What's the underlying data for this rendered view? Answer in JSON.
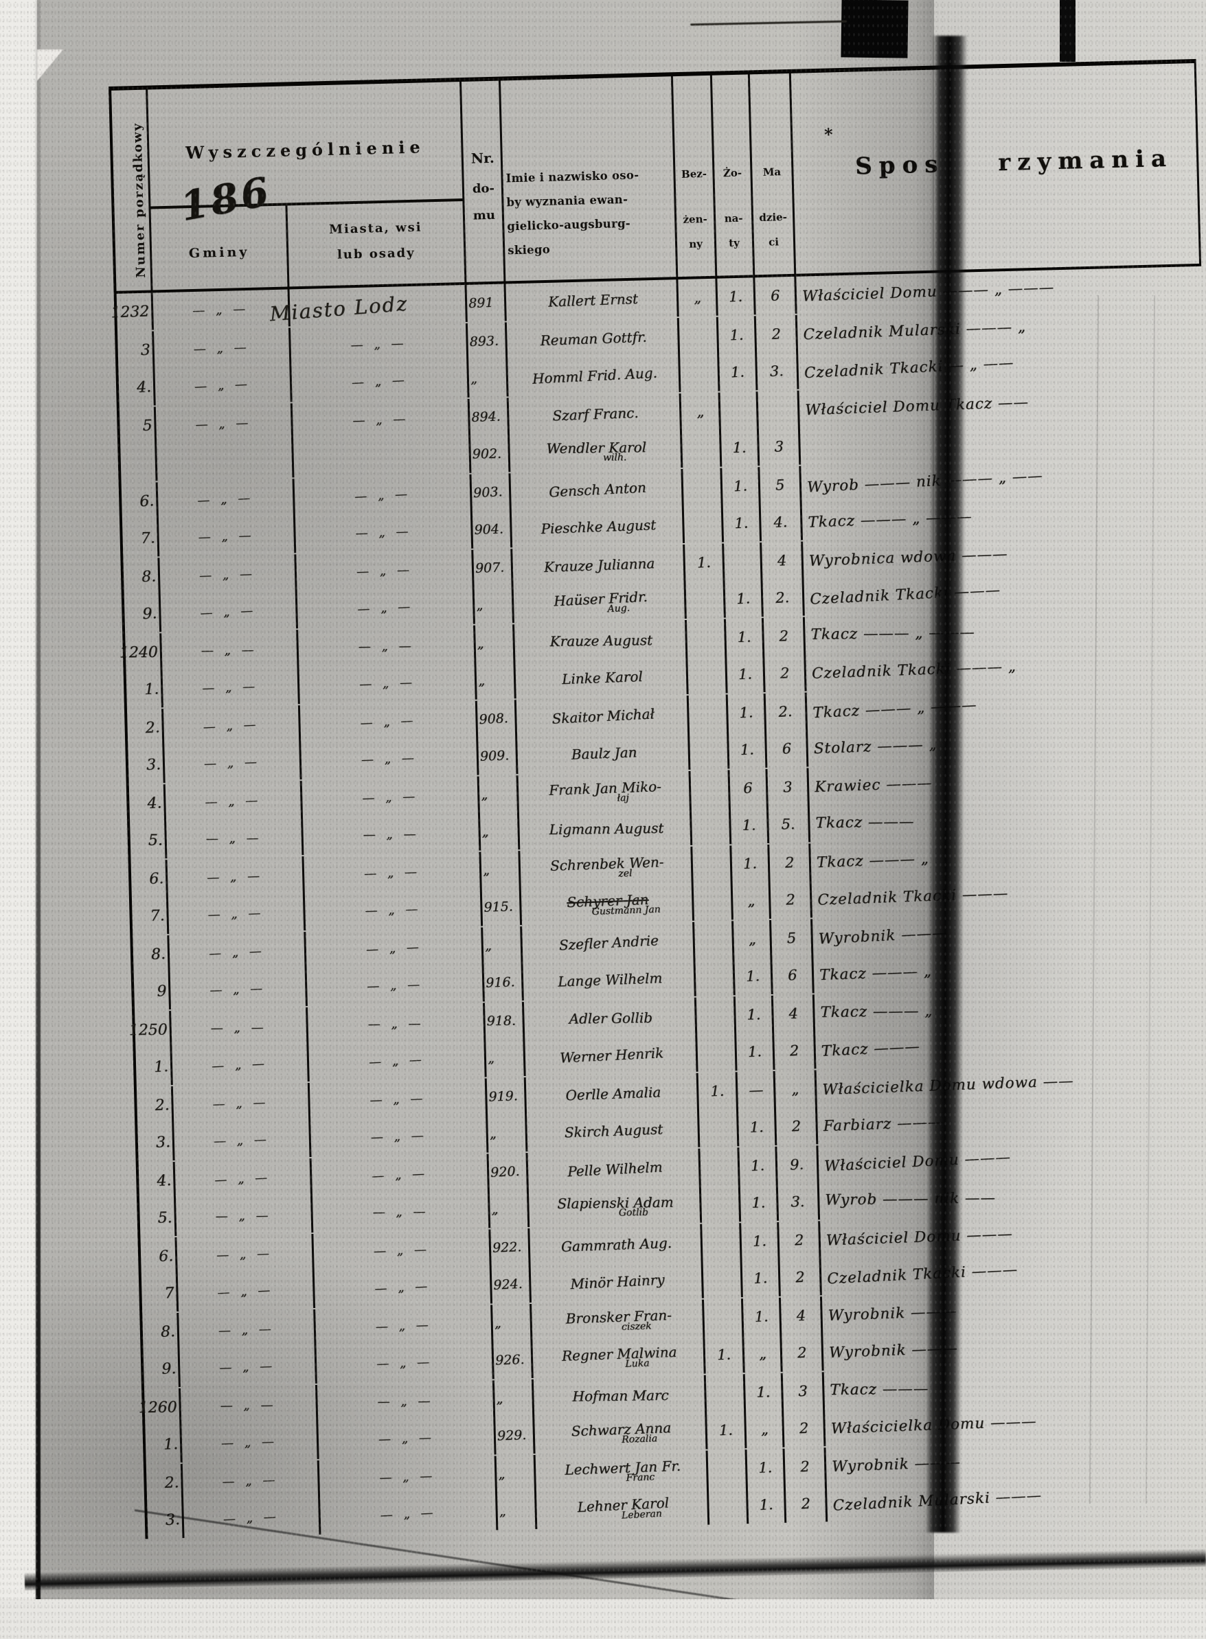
{
  "document": {
    "sheet_number": "186",
    "header": {
      "numer_col": "Numer porządkowy",
      "wyszczegolnienie": "Wyszczególnienie",
      "gminy": "Gminy",
      "miasta_line1": "Miasta, wsi",
      "miasta_line2": "lub osady",
      "nr_line1": "Nr.",
      "nr_line2": "do-",
      "nr_line3": "mu",
      "name_line1": "Imie i nazwisko oso-",
      "name_line2": "by wyznania ewan-",
      "name_line3": "gielicko-augsburg-",
      "name_line4": "skiego",
      "bez_line1": "Bez-",
      "bez_line2": "żen-",
      "bez_line3": "ny",
      "zo_line1": "Żo-",
      "zo_line2": "na-",
      "zo_line3": "ty",
      "ma_line1": "Ma",
      "ma_line2": "dzie-",
      "ma_line3": "ci",
      "sposob_left": "Spos",
      "sposob_right": "rzymania",
      "asterisk": "*"
    },
    "rows": [
      {
        "num": "1232",
        "g": "— „ —",
        "m": "Miasto Lodz",
        "nr": "891",
        "n": "Kallert Ernst",
        "b": "„",
        "z": "1.",
        "ma": "6",
        "o": "Właściciel Domu ——— „ ———"
      },
      {
        "num": "3",
        "g": "— „ —",
        "m": "— „ —",
        "nr": "893.",
        "n": "Reuman Gottfr.",
        "b": "",
        "z": "1.",
        "ma": "2",
        "o": "Czeladnik Mularski ——— „"
      },
      {
        "num": "4.",
        "g": "— „ —",
        "m": "— „ —",
        "nr": "„",
        "n": "Homml Frid. Aug.",
        "b": "",
        "z": "1.",
        "ma": "3.",
        "o": "Czeladnik Tkacki — „ ——"
      },
      {
        "num": "5",
        "g": "— „ —",
        "m": "— „ —",
        "nr": "894.",
        "n": "Szarf Franc.",
        "b": "„",
        "z": "",
        "ma": "",
        "o": "Właściciel Domu Tkacz ——"
      },
      {
        "num": "",
        "g": "",
        "m": "",
        "nr": "902.",
        "n": "Wendler Karol",
        "n2": "wilh.",
        "b": "",
        "z": "1.",
        "ma": "3",
        "o": ""
      },
      {
        "num": "6.",
        "g": "— „ —",
        "m": "— „ —",
        "nr": "903.",
        "n": "Gensch Anton",
        "b": "",
        "z": "1.",
        "ma": "5",
        "o": "Wyrob ——— nik ——— „ ——"
      },
      {
        "num": "7.",
        "g": "— „ —",
        "m": "— „ —",
        "nr": "904.",
        "n": "Pieschke August",
        "b": "",
        "z": "1.",
        "ma": "4.",
        "o": "Tkacz ——— „ ———"
      },
      {
        "num": "8.",
        "g": "— „ —",
        "m": "— „ —",
        "nr": "907.",
        "n": "Krauze Julianna",
        "b": "1.",
        "z": "",
        "ma": "4",
        "o": "Wyrobnica wdowa ———"
      },
      {
        "num": "9.",
        "g": "— „ —",
        "m": "— „ —",
        "nr": "„",
        "n": "Haüser Fridr.",
        "n2": "Aug.",
        "b": "",
        "z": "1.",
        "ma": "2.",
        "o": "Czeladnik Tkacki ———"
      },
      {
        "num": "1240",
        "g": "— „ —",
        "m": "— „ —",
        "nr": "„",
        "n": "Krauze August",
        "b": "",
        "z": "1.",
        "ma": "2",
        "o": "Tkacz ——— „ ———"
      },
      {
        "num": "1.",
        "g": "— „ —",
        "m": "— „ —",
        "nr": "„",
        "n": "Linke Karol",
        "b": "",
        "z": "1.",
        "ma": "2",
        "o": "Czeladnik Tkacki ——— „"
      },
      {
        "num": "2.",
        "g": "— „ —",
        "m": "— „ —",
        "nr": "908.",
        "n": "Skaitor Michał",
        "b": "",
        "z": "1.",
        "ma": "2.",
        "o": "Tkacz ——— „ ———"
      },
      {
        "num": "3.",
        "g": "— „ —",
        "m": "— „ —",
        "nr": "909.",
        "n": "Baulz Jan",
        "b": "",
        "z": "1.",
        "ma": "6",
        "o": "Stolarz ——— „"
      },
      {
        "num": "4.",
        "g": "— „ —",
        "m": "— „ —",
        "nr": "„",
        "n": "Frank Jan Miko-",
        "n2": "łaj",
        "b": "",
        "z": "6",
        "ma": "3",
        "o": "Krawiec ———"
      },
      {
        "num": "5.",
        "g": "— „ —",
        "m": "— „ —",
        "nr": "„",
        "n": "Ligmann August",
        "b": "",
        "z": "1.",
        "ma": "5.",
        "o": "Tkacz ———"
      },
      {
        "num": "6.",
        "g": "— „ —",
        "m": "— „ —",
        "nr": "„",
        "n": "Schrenbek Wen-",
        "n2": "zel",
        "b": "",
        "z": "1.",
        "ma": "2",
        "o": "Tkacz ——— „"
      },
      {
        "num": "7.",
        "g": "— „ —",
        "m": "— „ —",
        "nr": "915.",
        "n": "Schyrer Jan",
        "n2": "Gustmann Jan",
        "strike": true,
        "b": "",
        "z": "„",
        "ma": "2",
        "o": "Czeladnik Tkacki ———"
      },
      {
        "num": "8.",
        "g": "— „ —",
        "m": "— „ —",
        "nr": "„",
        "n": "Szefler Andrie",
        "b": "",
        "z": "„",
        "ma": "5",
        "o": "Wyrobnik ———"
      },
      {
        "num": "9",
        "g": "— „ —",
        "m": "— „ —",
        "nr": "916.",
        "n": "Lange Wilhelm",
        "b": "",
        "z": "1.",
        "ma": "6",
        "o": "Tkacz ——— „"
      },
      {
        "num": "1250",
        "g": "— „ —",
        "m": "— „ —",
        "nr": "918.",
        "n": "Adler Gollib",
        "b": "",
        "z": "1.",
        "ma": "4",
        "o": "Tkacz ——— „"
      },
      {
        "num": "1.",
        "g": "— „ —",
        "m": "— „ —",
        "nr": "„",
        "n": "Werner Henrik",
        "b": "",
        "z": "1.",
        "ma": "2",
        "o": "Tkacz ———"
      },
      {
        "num": "2.",
        "g": "— „ —",
        "m": "— „ —",
        "nr": "919.",
        "n": "Oerlle Amalia",
        "b": "1.",
        "z": "—",
        "ma": "„",
        "o": "Właścicielka Domu wdowa ——"
      },
      {
        "num": "3.",
        "g": "— „ —",
        "m": "— „ —",
        "nr": "„",
        "n": "Skirch August",
        "b": "",
        "z": "1.",
        "ma": "2",
        "o": "Farbiarz ———"
      },
      {
        "num": "4.",
        "g": "— „ —",
        "m": "— „ —",
        "nr": "920.",
        "n": "Pelle Wilhelm",
        "b": "",
        "z": "1.",
        "ma": "9.",
        "o": "Właściciel Domu ———"
      },
      {
        "num": "5.",
        "g": "— „ —",
        "m": "— „ —",
        "nr": "„",
        "n": "Slapienski Adam",
        "n2": "Gotlib",
        "b": "",
        "z": "1.",
        "ma": "3.",
        "o": "Wyrob ——— nik ——"
      },
      {
        "num": "6.",
        "g": "— „ —",
        "m": "— „ —",
        "nr": "922.",
        "n": "Gammrath Aug.",
        "b": "",
        "z": "1.",
        "ma": "2",
        "o": "Właściciel Domu ———"
      },
      {
        "num": "7",
        "g": "— „ —",
        "m": "— „ —",
        "nr": "924.",
        "n": "Minör Hainry",
        "b": "",
        "z": "1.",
        "ma": "2",
        "o": "Czeladnik Tkacki ———"
      },
      {
        "num": "8.",
        "g": "— „ —",
        "m": "— „ —",
        "nr": "„",
        "n": "Bronsker Fran-",
        "n2": "ciszek",
        "b": "",
        "z": "1.",
        "ma": "4",
        "o": "Wyrobnik ———"
      },
      {
        "num": "9.",
        "g": "— „ —",
        "m": "— „ —",
        "nr": "926.",
        "n": "Regner Malwina",
        "n2": "Luka",
        "b": "1.",
        "z": "„",
        "ma": "2",
        "o": "Wyrobnik ———"
      },
      {
        "num": "1260",
        "g": "— „ —",
        "m": "— „ —",
        "nr": "„",
        "n": "Hofman Marc",
        "b": "",
        "z": "1.",
        "ma": "3",
        "o": "Tkacz ———"
      },
      {
        "num": "1.",
        "g": "— „ —",
        "m": "— „ —",
        "nr": "929.",
        "n": "Schwarz Anna",
        "n2": "Rozalia",
        "b": "1.",
        "z": "„",
        "ma": "2",
        "o": "Właścicielka Domu ———"
      },
      {
        "num": "2.",
        "g": "— „ —",
        "m": "— „ —",
        "nr": "„",
        "n": "Lechwert Jan Fr.",
        "n2": "Franc",
        "b": "",
        "z": "1.",
        "ma": "2",
        "o": "Wyrobnik ———"
      },
      {
        "num": "3.",
        "g": "— „ —",
        "m": "— „ —",
        "nr": "„",
        "n": "Lehner Karol",
        "n2": "Leberan",
        "b": "",
        "z": "1.",
        "ma": "2",
        "o": "Czeladnik Mularski ———"
      }
    ]
  },
  "colors": {
    "paper": "#bcbbb6",
    "ink": "#14120f",
    "scan_background": "#ecebe7",
    "fold_band": "#060606"
  }
}
